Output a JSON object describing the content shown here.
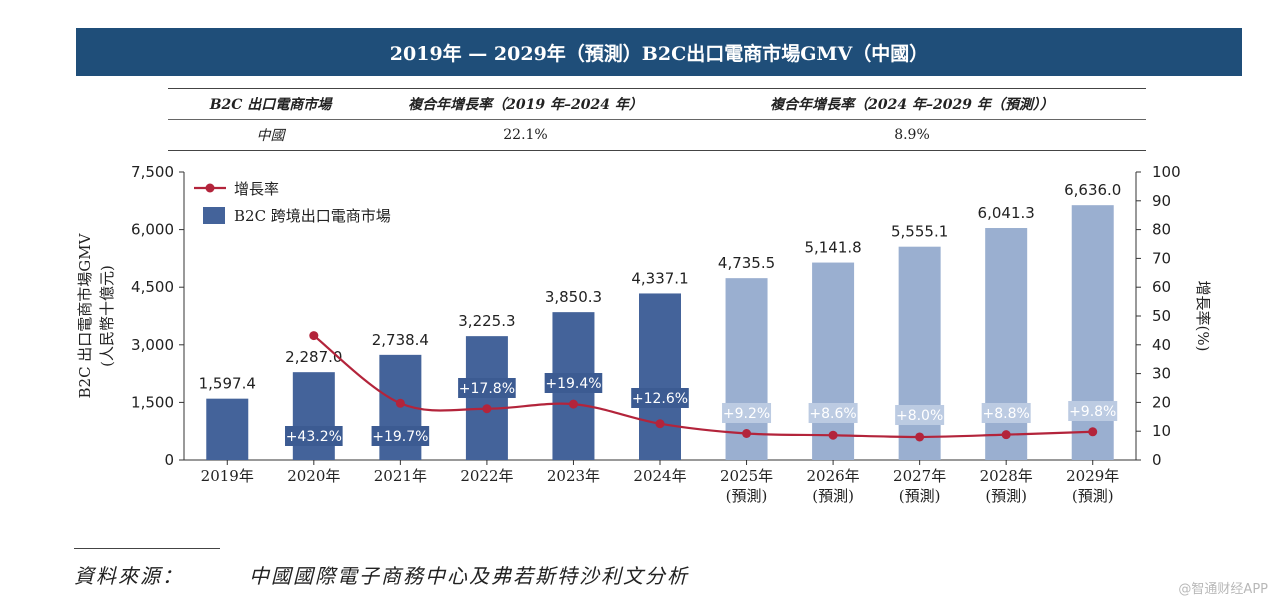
{
  "title": "2019年 — 2029年（預測）B2C出口電商市場GMV（中國）",
  "cagr_table": {
    "headers": [
      "B2C 出口電商市場",
      "複合年增長率（2019 年–2024 年）",
      "複合年增長率（2024 年–2029 年（預測））"
    ],
    "row": [
      "中國",
      "22.1%",
      "8.9%"
    ]
  },
  "chart_data": {
    "type": "bar",
    "categories": [
      [
        "2019年"
      ],
      [
        "2020年"
      ],
      [
        "2021年"
      ],
      [
        "2022年"
      ],
      [
        "2023年"
      ],
      [
        "2024年"
      ],
      [
        "2025年",
        "(預測)"
      ],
      [
        "2026年",
        "(預測)"
      ],
      [
        "2027年",
        "(預測)"
      ],
      [
        "2028年",
        "(預測)"
      ],
      [
        "2029年",
        "(預測)"
      ]
    ],
    "series": [
      {
        "name": "B2C 跨境出口電商市場",
        "axis": "left",
        "values": [
          1597.4,
          2287.0,
          2738.4,
          3225.3,
          3850.3,
          4337.1,
          4735.5,
          5141.8,
          5555.1,
          6041.3,
          6636.0
        ],
        "labels": [
          "1,597.4",
          "2,287.0",
          "2,738.4",
          "3,225.3",
          "3,850.3",
          "4,337.1",
          "4,735.5",
          "5,141.8",
          "5,555.1",
          "6,041.3",
          "6,636.0"
        ],
        "color_actual": "#44639a",
        "color_forecast": "#9aafd0"
      },
      {
        "name": "增長率",
        "axis": "right",
        "type": "line",
        "values": [
          null,
          43.2,
          19.7,
          17.8,
          19.4,
          12.6,
          9.2,
          8.6,
          8.0,
          8.8,
          9.8
        ],
        "labels": [
          null,
          "+43.2%",
          "+19.7%",
          "+17.8%",
          "+19.4%",
          "+12.6%",
          "+9.2%",
          "+8.6%",
          "+8.0%",
          "+8.8%",
          "+9.8%"
        ],
        "color": "#b3243b"
      }
    ],
    "forecast_start_index": 6,
    "ylabel": "B2C 出口電商市場GMV\n(人民幣十億元)",
    "y2label": "增長率(%)",
    "ylim": [
      0,
      7500
    ],
    "yticks": [
      0,
      1500,
      3000,
      4500,
      6000,
      7500
    ],
    "ytick_labels": [
      "0",
      "1,500",
      "3,000",
      "4,500",
      "6,000",
      "7,500"
    ],
    "y2lim": [
      0,
      100
    ],
    "y2ticks": [
      0,
      10,
      20,
      30,
      40,
      50,
      60,
      70,
      80,
      90,
      100
    ],
    "legend_position": "top-left",
    "grid": false
  },
  "source": {
    "label": "資料來源：",
    "text": "中國國際電子商務中心及弗若斯特沙利文分析"
  },
  "watermark": "@智通财经APP"
}
